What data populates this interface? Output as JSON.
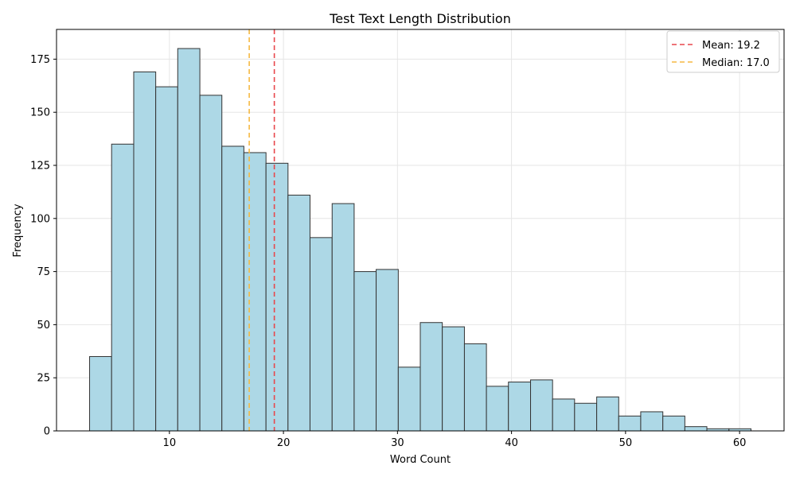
{
  "chart_data": {
    "type": "bar",
    "title": "Test Text Length Distribution",
    "xlabel": "Word Count",
    "ylabel": "Frequency",
    "xlim": [
      0.1,
      63.9
    ],
    "ylim": [
      0,
      189
    ],
    "x_ticks": [
      10,
      20,
      30,
      40,
      50,
      60
    ],
    "y_ticks": [
      0,
      25,
      50,
      75,
      100,
      125,
      150,
      175
    ],
    "grid": true,
    "bin_edges": [
      3.0,
      4.93,
      6.87,
      8.8,
      10.73,
      12.67,
      14.6,
      16.53,
      18.47,
      20.4,
      22.33,
      24.27,
      26.2,
      28.13,
      30.07,
      32.0,
      33.93,
      35.87,
      37.8,
      39.73,
      41.67,
      43.6,
      45.53,
      47.47,
      49.4,
      51.33,
      53.27,
      55.2,
      57.13,
      59.07,
      61.0
    ],
    "values": [
      35,
      135,
      169,
      162,
      180,
      158,
      134,
      131,
      126,
      111,
      91,
      107,
      75,
      76,
      30,
      51,
      49,
      41,
      21,
      23,
      24,
      15,
      13,
      16,
      7,
      9,
      7,
      2,
      1,
      1
    ],
    "bar_color": "#add8e6",
    "edge_color": "#333333",
    "reference_lines": [
      {
        "label": "Mean: 19.2",
        "x": 19.2,
        "color": "#e8474b",
        "style": "dashed"
      },
      {
        "label": "Median: 17.0",
        "x": 17.0,
        "color": "#f5b942",
        "style": "dashed"
      }
    ],
    "legend_position": "top-right"
  }
}
